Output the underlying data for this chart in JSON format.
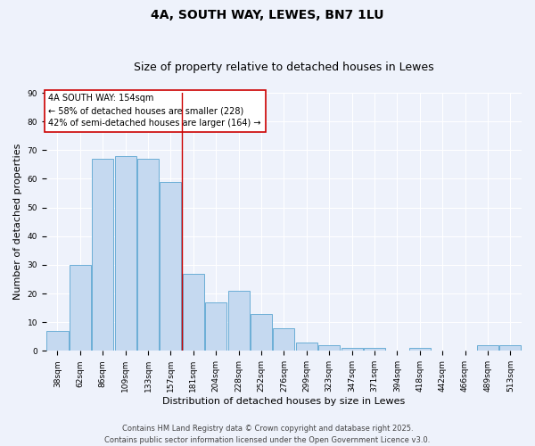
{
  "title": "4A, SOUTH WAY, LEWES, BN7 1LU",
  "subtitle": "Size of property relative to detached houses in Lewes",
  "xlabel": "Distribution of detached houses by size in Lewes",
  "ylabel": "Number of detached properties",
  "categories": [
    "38sqm",
    "62sqm",
    "86sqm",
    "109sqm",
    "133sqm",
    "157sqm",
    "181sqm",
    "204sqm",
    "228sqm",
    "252sqm",
    "276sqm",
    "299sqm",
    "323sqm",
    "347sqm",
    "371sqm",
    "394sqm",
    "418sqm",
    "442sqm",
    "466sqm",
    "489sqm",
    "513sqm"
  ],
  "values": [
    7,
    30,
    67,
    68,
    67,
    59,
    27,
    17,
    21,
    13,
    8,
    3,
    2,
    1,
    1,
    0,
    1,
    0,
    0,
    2,
    2
  ],
  "bar_color": "#c5d9f0",
  "bar_edgecolor": "#6baed6",
  "background_color": "#eef2fb",
  "grid_color": "#ffffff",
  "vline_x_index": 5,
  "vline_color": "#cc0000",
  "annotation_line1": "4A SOUTH WAY: 154sqm",
  "annotation_line2": "← 58% of detached houses are smaller (228)",
  "annotation_line3": "42% of semi-detached houses are larger (164) →",
  "annotation_box_facecolor": "#ffffff",
  "annotation_box_edgecolor": "#cc0000",
  "footer_line1": "Contains HM Land Registry data © Crown copyright and database right 2025.",
  "footer_line2": "Contains public sector information licensed under the Open Government Licence v3.0.",
  "ylim": [
    0,
    90
  ],
  "yticks": [
    0,
    10,
    20,
    30,
    40,
    50,
    60,
    70,
    80,
    90
  ],
  "title_fontsize": 10,
  "subtitle_fontsize": 9,
  "axis_label_fontsize": 8,
  "tick_fontsize": 6.5,
  "annotation_fontsize": 7,
  "footer_fontsize": 6
}
